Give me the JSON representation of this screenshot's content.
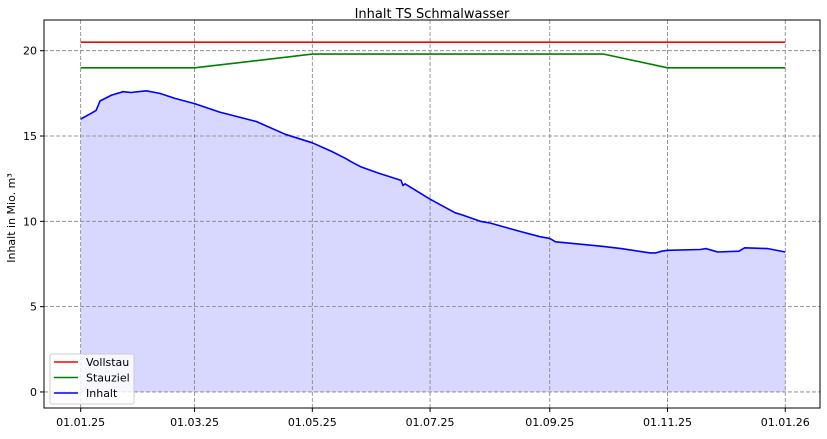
{
  "chart_data": {
    "type": "line",
    "title": "Inhalt TS Schmalwasser",
    "xlabel": "",
    "ylabel": "Inhalt in Mio. m³",
    "xlim": [
      "2024-12-13",
      "2026-01-19"
    ],
    "ylim": [
      -0.94,
      21.8
    ],
    "grid": true,
    "legend_position": "lower-left",
    "x_ticks": [
      {
        "date": "2025-01-01",
        "label": "01.01.25"
      },
      {
        "date": "2025-03-01",
        "label": "01.03.25"
      },
      {
        "date": "2025-05-01",
        "label": "01.05.25"
      },
      {
        "date": "2025-07-01",
        "label": "01.07.25"
      },
      {
        "date": "2025-09-01",
        "label": "01.09.25"
      },
      {
        "date": "2025-11-01",
        "label": "01.11.25"
      },
      {
        "date": "2026-01-01",
        "label": "01.01.26"
      }
    ],
    "y_ticks": [
      0,
      5,
      10,
      15,
      20
    ],
    "series": [
      {
        "name": "Vollstau",
        "color": "#ff0000",
        "fill": false,
        "x": [
          "2025-01-01",
          "2026-01-01"
        ],
        "y": [
          20.5,
          20.5
        ]
      },
      {
        "name": "Stauziel",
        "color": "#008000",
        "fill": false,
        "x": [
          "2025-01-01",
          "2025-03-01",
          "2025-05-01",
          "2025-09-29",
          "2025-11-01",
          "2026-01-01"
        ],
        "y": [
          19.0,
          19.0,
          19.8,
          19.8,
          19.0,
          19.0
        ]
      },
      {
        "name": "Inhalt",
        "color": "#0000ff",
        "fill": true,
        "fill_color": "#d8d8ff",
        "x": [
          "2025-01-01",
          "2025-01-06",
          "2025-01-09",
          "2025-01-11",
          "2025-01-17",
          "2025-01-23",
          "2025-01-27",
          "2025-02-04",
          "2025-02-11",
          "2025-02-19",
          "2025-03-01",
          "2025-03-14",
          "2025-04-02",
          "2025-04-09",
          "2025-04-17",
          "2025-05-01",
          "2025-05-11",
          "2025-05-18",
          "2025-05-21",
          "2025-05-26",
          "2025-06-05",
          "2025-06-16",
          "2025-06-17",
          "2025-06-18",
          "2025-07-01",
          "2025-07-14",
          "2025-07-17",
          "2025-07-27",
          "2025-08-01",
          "2025-08-17",
          "2025-08-27",
          "2025-09-01",
          "2025-09-04",
          "2025-09-27",
          "2025-10-08",
          "2025-10-23",
          "2025-10-26",
          "2025-10-29",
          "2025-11-01",
          "2025-11-18",
          "2025-11-21",
          "2025-11-24",
          "2025-11-27",
          "2025-12-08",
          "2025-12-11",
          "2025-12-23",
          "2026-01-01"
        ],
        "y": [
          16.0,
          16.3,
          16.5,
          17.05,
          17.4,
          17.6,
          17.55,
          17.65,
          17.5,
          17.2,
          16.9,
          16.4,
          15.85,
          15.5,
          15.1,
          14.6,
          14.1,
          13.7,
          13.5,
          13.2,
          12.8,
          12.4,
          12.1,
          12.2,
          11.3,
          10.5,
          10.4,
          10.0,
          9.9,
          9.4,
          9.1,
          9.0,
          8.8,
          8.55,
          8.4,
          8.15,
          8.15,
          8.25,
          8.3,
          8.35,
          8.4,
          8.3,
          8.2,
          8.25,
          8.45,
          8.4,
          8.2
        ]
      }
    ]
  }
}
